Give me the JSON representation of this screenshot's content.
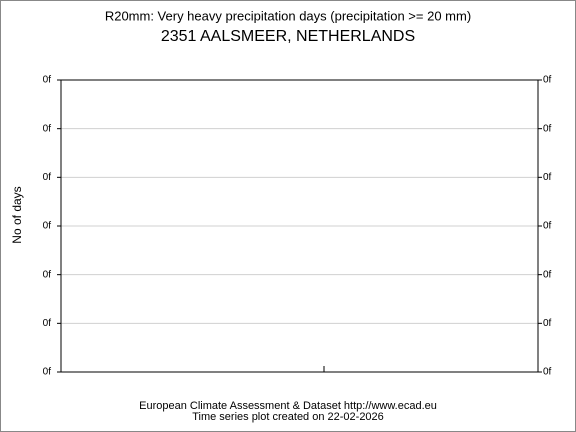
{
  "chart_data": {
    "type": "line",
    "title": "R20mm: Very heavy precipitation days (precipitation >= 20 mm)",
    "subtitle": "2351 AALSMEER, NETHERLANDS",
    "ylabel": "No of days",
    "ytick_labels": [
      "0f",
      "0f",
      "0f",
      "0f",
      "0f",
      "0f",
      "0f"
    ],
    "grid": true,
    "footer": [
      "European Climate Assessment & Dataset  http://www.ecad.eu",
      "Time series plot created on 22-02-2026"
    ]
  }
}
